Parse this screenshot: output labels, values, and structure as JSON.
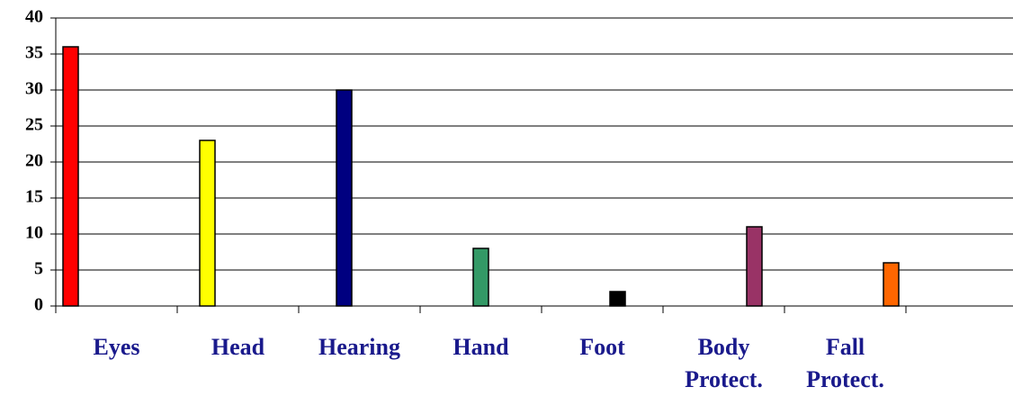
{
  "chart_data": {
    "type": "bar",
    "categories": [
      "Eyes",
      "Head",
      "Hearing",
      "Hand",
      "Foot",
      "Body Protect.",
      "Fall Protect."
    ],
    "values": [
      36,
      23,
      30,
      8,
      2,
      11,
      6
    ],
    "colors": [
      "#ff0000",
      "#ffff00",
      "#000080",
      "#339966",
      "#000000",
      "#993366",
      "#ff6600"
    ],
    "ylim": [
      0,
      40
    ],
    "yticks": [
      0,
      5,
      10,
      15,
      20,
      25,
      30,
      35,
      40
    ],
    "grid": true
  }
}
